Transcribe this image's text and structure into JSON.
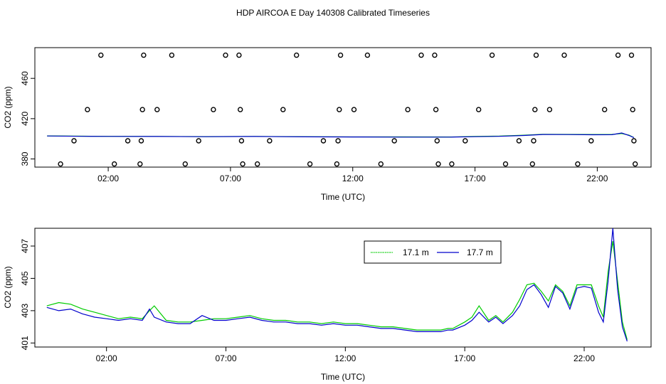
{
  "title": "HDP AIRCOA E  Day 140308  Calibrated Timeseries",
  "chart_data": [
    {
      "type": "scatter",
      "xlabel": "Time (UTC)",
      "ylabel": "CO2 (ppm)",
      "xlim": [
        -1.0,
        24.2
      ],
      "ylim": [
        371.9,
        490.5
      ],
      "xticks": [
        2,
        7,
        12,
        17,
        22
      ],
      "xtick_labels": [
        "02:00",
        "07:00",
        "12:00",
        "17:00",
        "22:00"
      ],
      "yticks": [
        380,
        420,
        460
      ],
      "ytick_labels": [
        "380",
        "420",
        "460"
      ],
      "grid": false,
      "calibration_points": [
        {
          "x": 0.05,
          "y": 375
        },
        {
          "x": 0.6,
          "y": 398
        },
        {
          "x": 1.15,
          "y": 429
        },
        {
          "x": 1.7,
          "y": 483
        },
        {
          "x": 2.25,
          "y": 375
        },
        {
          "x": 2.8,
          "y": 398
        },
        {
          "x": 3.3,
          "y": 375
        },
        {
          "x": 3.35,
          "y": 398
        },
        {
          "x": 3.4,
          "y": 429
        },
        {
          "x": 3.45,
          "y": 483
        },
        {
          "x": 4.0,
          "y": 429
        },
        {
          "x": 4.6,
          "y": 483
        },
        {
          "x": 5.15,
          "y": 375
        },
        {
          "x": 5.7,
          "y": 398
        },
        {
          "x": 6.3,
          "y": 429
        },
        {
          "x": 6.8,
          "y": 483
        },
        {
          "x": 7.35,
          "y": 483
        },
        {
          "x": 7.4,
          "y": 429
        },
        {
          "x": 7.45,
          "y": 398
        },
        {
          "x": 7.5,
          "y": 375
        },
        {
          "x": 8.1,
          "y": 375
        },
        {
          "x": 8.6,
          "y": 398
        },
        {
          "x": 9.15,
          "y": 429
        },
        {
          "x": 9.7,
          "y": 483
        },
        {
          "x": 10.25,
          "y": 375
        },
        {
          "x": 10.8,
          "y": 398
        },
        {
          "x": 11.35,
          "y": 375
        },
        {
          "x": 11.4,
          "y": 398
        },
        {
          "x": 11.45,
          "y": 429
        },
        {
          "x": 11.5,
          "y": 483
        },
        {
          "x": 12.05,
          "y": 429
        },
        {
          "x": 12.6,
          "y": 483
        },
        {
          "x": 13.15,
          "y": 375
        },
        {
          "x": 13.7,
          "y": 398
        },
        {
          "x": 14.25,
          "y": 429
        },
        {
          "x": 14.8,
          "y": 483
        },
        {
          "x": 15.35,
          "y": 483
        },
        {
          "x": 15.4,
          "y": 429
        },
        {
          "x": 15.45,
          "y": 398
        },
        {
          "x": 15.5,
          "y": 375
        },
        {
          "x": 16.05,
          "y": 375
        },
        {
          "x": 16.6,
          "y": 398
        },
        {
          "x": 17.15,
          "y": 429
        },
        {
          "x": 17.7,
          "y": 483
        },
        {
          "x": 18.25,
          "y": 375
        },
        {
          "x": 18.8,
          "y": 398
        },
        {
          "x": 19.35,
          "y": 375
        },
        {
          "x": 19.4,
          "y": 398
        },
        {
          "x": 19.45,
          "y": 429
        },
        {
          "x": 19.5,
          "y": 483
        },
        {
          "x": 20.05,
          "y": 429
        },
        {
          "x": 20.65,
          "y": 483
        },
        {
          "x": 21.2,
          "y": 375
        },
        {
          "x": 21.75,
          "y": 398
        },
        {
          "x": 22.3,
          "y": 429
        },
        {
          "x": 22.85,
          "y": 483
        },
        {
          "x": 23.4,
          "y": 483
        },
        {
          "x": 23.45,
          "y": 429
        },
        {
          "x": 23.5,
          "y": 398
        },
        {
          "x": 23.55,
          "y": 375
        }
      ],
      "series": [
        {
          "color": "#00cc00",
          "x": [
            -0.5,
            1,
            2,
            4,
            6,
            8,
            10,
            12,
            14,
            16,
            17,
            18,
            19,
            19.8,
            20.8,
            21.8,
            22.6,
            23.0,
            23.3,
            23.5
          ],
          "y": [
            402.9,
            402.6,
            402.5,
            402.4,
            402.2,
            402.4,
            402.1,
            401.9,
            401.9,
            401.8,
            402.3,
            402.7,
            403.6,
            404.5,
            404.4,
            404.3,
            404.4,
            405.2,
            403.6,
            401.2
          ]
        },
        {
          "color": "#0000cc",
          "x": [
            -0.5,
            1,
            2,
            4,
            6,
            8,
            10,
            12,
            14,
            16,
            17,
            18,
            19,
            19.8,
            20.8,
            21.8,
            22.6,
            23.0,
            23.3,
            23.5
          ],
          "y": [
            402.8,
            402.5,
            402.4,
            402.3,
            402.1,
            402.3,
            402.0,
            401.8,
            401.7,
            401.7,
            402.1,
            402.5,
            403.3,
            404.3,
            404.2,
            404.0,
            404.1,
            405.8,
            403.3,
            401.1
          ]
        }
      ]
    },
    {
      "type": "line",
      "xlabel": "Time (UTC)",
      "ylabel": "CO2 (ppm)",
      "xlim": [
        -1.0,
        24.8
      ],
      "ylim": [
        400.75,
        408.1
      ],
      "xticks": [
        2,
        7,
        12,
        17,
        22
      ],
      "xtick_labels": [
        "02:00",
        "07:00",
        "12:00",
        "17:00",
        "22:00"
      ],
      "yticks": [
        401,
        403,
        405,
        407
      ],
      "ytick_labels": [
        "401",
        "403",
        "405",
        "407"
      ],
      "grid": false,
      "legend_position": "top-right",
      "series": [
        {
          "name": "17.1 m",
          "color": "#00cc00",
          "x": [
            -0.5,
            0.0,
            0.5,
            1.0,
            1.5,
            2.0,
            2.5,
            3.0,
            3.5,
            3.8,
            4.0,
            4.5,
            5.0,
            5.5,
            6.0,
            6.5,
            7.0,
            7.5,
            8.0,
            8.5,
            9.0,
            9.5,
            10.0,
            10.5,
            11.0,
            11.5,
            12.0,
            12.5,
            13.0,
            13.5,
            14.0,
            14.5,
            15.0,
            15.5,
            16.0,
            16.3,
            16.5,
            17.0,
            17.3,
            17.6,
            18.0,
            18.3,
            18.6,
            19.0,
            19.3,
            19.6,
            19.9,
            20.2,
            20.5,
            20.8,
            21.1,
            21.4,
            21.7,
            22.0,
            22.3,
            22.6,
            22.8,
            23.0,
            23.2,
            23.4,
            23.6,
            23.8
          ],
          "y": [
            403.3,
            403.5,
            403.4,
            403.1,
            402.9,
            402.7,
            402.5,
            402.6,
            402.5,
            403.0,
            403.3,
            402.4,
            402.3,
            402.3,
            402.4,
            402.5,
            402.5,
            402.6,
            402.7,
            402.5,
            402.4,
            402.4,
            402.3,
            402.3,
            402.2,
            402.3,
            402.2,
            402.2,
            402.1,
            402.0,
            402.0,
            401.9,
            401.8,
            401.8,
            401.8,
            401.9,
            401.9,
            402.3,
            402.6,
            403.3,
            402.4,
            402.7,
            402.3,
            402.9,
            403.7,
            404.6,
            404.7,
            404.2,
            403.6,
            404.6,
            404.2,
            403.3,
            404.6,
            404.6,
            404.6,
            403.3,
            402.6,
            405.4,
            407.3,
            404.8,
            402.3,
            401.2
          ]
        },
        {
          "name": "17.7 m",
          "color": "#0000cc",
          "x": [
            -0.5,
            0.0,
            0.5,
            1.0,
            1.5,
            2.0,
            2.5,
            3.0,
            3.5,
            3.8,
            4.0,
            4.5,
            5.0,
            5.5,
            6.0,
            6.5,
            7.0,
            7.5,
            8.0,
            8.5,
            9.0,
            9.5,
            10.0,
            10.5,
            11.0,
            11.5,
            12.0,
            12.5,
            13.0,
            13.5,
            14.0,
            14.5,
            15.0,
            15.5,
            16.0,
            16.3,
            16.5,
            17.0,
            17.3,
            17.6,
            18.0,
            18.3,
            18.6,
            19.0,
            19.3,
            19.6,
            19.9,
            20.2,
            20.5,
            20.8,
            21.1,
            21.4,
            21.7,
            22.0,
            22.3,
            22.6,
            22.8,
            23.0,
            23.2,
            23.4,
            23.6,
            23.8
          ],
          "y": [
            403.2,
            403.0,
            403.1,
            402.8,
            402.6,
            402.5,
            402.4,
            402.5,
            402.4,
            403.1,
            402.6,
            402.3,
            402.2,
            402.2,
            402.7,
            402.4,
            402.4,
            402.5,
            402.6,
            402.4,
            402.3,
            402.3,
            402.2,
            402.2,
            402.1,
            402.2,
            402.1,
            402.1,
            402.0,
            401.9,
            401.9,
            401.8,
            401.7,
            401.7,
            401.7,
            401.8,
            401.8,
            402.1,
            402.4,
            402.9,
            402.3,
            402.6,
            402.2,
            402.7,
            403.3,
            404.3,
            404.6,
            404.0,
            403.2,
            404.5,
            404.1,
            403.1,
            404.4,
            404.5,
            404.4,
            402.9,
            402.3,
            404.8,
            408.1,
            404.3,
            402.0,
            401.1
          ]
        }
      ]
    }
  ]
}
